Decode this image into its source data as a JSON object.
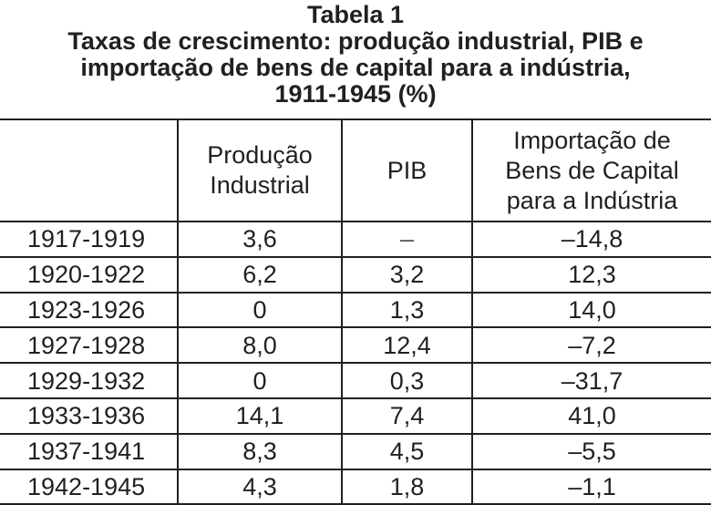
{
  "title": {
    "line1": "Tabela 1",
    "line2": "Taxas de crescimento: produção industrial, PIB e",
    "line3": "importação de bens de capital para a indústria,",
    "line4": "1911-1945 (%)"
  },
  "headers": {
    "period": "",
    "production_line1": "Produção",
    "production_line2": "Industrial",
    "pib": "PIB",
    "import_line1": "Importação de",
    "import_line2": "Bens de Capital",
    "import_line3": "para a Indústria"
  },
  "rows": [
    {
      "period": "1917-1919",
      "production": "3,6",
      "pib": "–",
      "import": "–14,8"
    },
    {
      "period": "1920-1922",
      "production": "6,2",
      "pib": "3,2",
      "import": "12,3"
    },
    {
      "period": "1923-1926",
      "production": "0",
      "pib": "1,3",
      "import": "14,0"
    },
    {
      "period": "1927-1928",
      "production": "8,0",
      "pib": "12,4",
      "import": "–7,2"
    },
    {
      "period": "1929-1932",
      "production": "0",
      "pib": "0,3",
      "import": "–31,7"
    },
    {
      "period": "1933-1936",
      "production": "14,1",
      "pib": "7,4",
      "import": "41,0"
    },
    {
      "period": "1937-1941",
      "production": "8,3",
      "pib": "4,5",
      "import": "–5,5"
    },
    {
      "period": "1942-1945",
      "production": "4,3",
      "pib": "1,8",
      "import": "–1,1"
    }
  ]
}
